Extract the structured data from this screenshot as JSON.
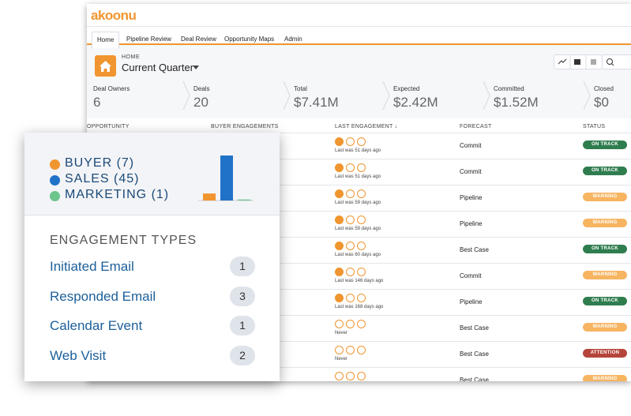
{
  "app": {
    "logo": "akoonu",
    "tabs": [
      "Home",
      "Pipeline Review",
      "Deal Review",
      "Opportunity Maps",
      "Admin"
    ],
    "active_tab": 0
  },
  "header": {
    "breadcrumb": "HOME",
    "title": "Current Quarter"
  },
  "metrics": [
    {
      "label": "Deal Owners",
      "value": "6"
    },
    {
      "label": "Deals",
      "value": "20"
    },
    {
      "label": "Total",
      "value": "$7.41M"
    },
    {
      "label": "Expected",
      "value": "$2.42M"
    },
    {
      "label": "Committed",
      "value": "$1.52M"
    },
    {
      "label": "Closed",
      "value": "$0"
    }
  ],
  "table": {
    "columns": [
      "OPPORTUNITY",
      "BUYER ENGAGEMENTS",
      "LAST ENGAGEMENT ↓",
      "FORECAST",
      "STATUS"
    ],
    "rows": [
      {
        "active": true,
        "last_engagement": "Last was 51 days ago",
        "forecast": "Commit",
        "status": "ON TRACK"
      },
      {
        "active": true,
        "last_engagement": "Last was 51 days ago",
        "forecast": "Commit",
        "status": "ON TRACK"
      },
      {
        "active": true,
        "last_engagement": "Last was 59 days ago",
        "forecast": "Pipeline",
        "status": "WARNING"
      },
      {
        "active": true,
        "last_engagement": "Last was 59 days ago",
        "forecast": "Pipeline",
        "status": "WARNING"
      },
      {
        "active": true,
        "last_engagement": "Last was 60 days ago",
        "forecast": "Best Case",
        "status": "ON TRACK"
      },
      {
        "active": true,
        "last_engagement": "Last was 146 days ago",
        "forecast": "Commit",
        "status": "WARNING"
      },
      {
        "active": true,
        "last_engagement": "Last was 168 days ago",
        "forecast": "Pipeline",
        "status": "ON TRACK"
      },
      {
        "active": false,
        "last_engagement": "Never",
        "forecast": "Best Case",
        "status": "WARNING"
      },
      {
        "active": false,
        "last_engagement": "Never",
        "forecast": "Best Case",
        "status": "ATTENTION"
      },
      {
        "active": false,
        "forecast": "Best Case",
        "status": "WARNING"
      }
    ]
  },
  "card": {
    "groups": [
      {
        "label": "BUYER (7)",
        "value": 7,
        "color": "#f0952f"
      },
      {
        "label": "SALES (45)",
        "value": 45,
        "color": "#1f72c8"
      },
      {
        "label": "MARKETING (1)",
        "value": 1,
        "color": "#6cc58b"
      }
    ],
    "section_title": "ENGAGEMENT TYPES",
    "types": [
      {
        "name": "Initiated Email",
        "count": "1"
      },
      {
        "name": "Responded Email",
        "count": "3"
      },
      {
        "name": "Calendar Event",
        "count": "1"
      },
      {
        "name": "Web Visit",
        "count": "2"
      }
    ]
  }
}
